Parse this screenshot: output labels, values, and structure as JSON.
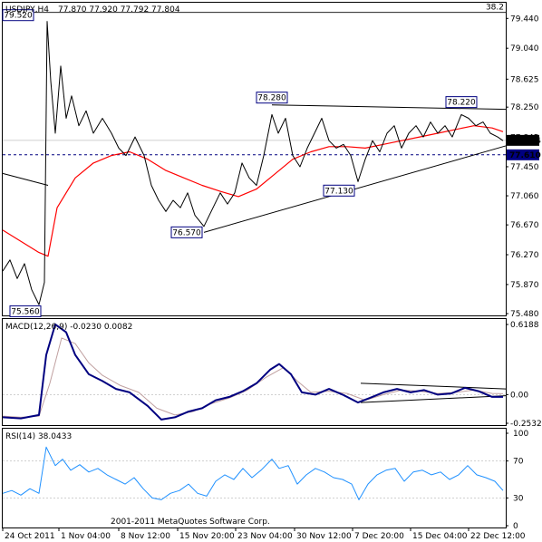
{
  "header": {
    "symbol_tf": "USDJPY,H4",
    "ohlc": "77.870 77.920 77.792 77.804"
  },
  "copyright": "2001-2011 MetaQuotes Software Corp.",
  "chart_data": [
    {
      "type": "line",
      "name": "price",
      "ylim": [
        75.48,
        79.48
      ],
      "yticks": [
        "79.440",
        "79.040",
        "78.625",
        "78.250",
        "77.845",
        "77.450",
        "77.060",
        "76.670",
        "76.270",
        "75.870",
        "75.480"
      ],
      "fib_label": "38.2",
      "fib_level": 79.52,
      "current_price_label": "77.804",
      "current_price": 77.804,
      "support_label": "77.610",
      "support_level": 77.61,
      "annotations": [
        {
          "text": "79.520",
          "i": 48,
          "value": 79.52
        },
        {
          "text": "75.560",
          "i": 40,
          "value": 75.56
        },
        {
          "text": "78.280",
          "i": 297,
          "value": 78.28
        },
        {
          "text": "76.570",
          "i": 222,
          "value": 76.57
        },
        {
          "text": "77.130",
          "i": 390,
          "value": 77.13
        },
        {
          "text": "78.220",
          "i": 506,
          "value": 78.22
        }
      ],
      "trendlines": [
        {
          "from": {
            "i": 222,
            "v": 76.57
          },
          "to": {
            "i": 555,
            "v": 77.73
          }
        },
        {
          "from": {
            "i": 297,
            "v": 78.28
          },
          "to": {
            "i": 555,
            "v": 78.22
          }
        },
        {
          "from": {
            "i": 0,
            "v": 77.36
          },
          "to": {
            "i": 50,
            "v": 77.2
          }
        }
      ],
      "close": [
        {
          "i": 0,
          "v": 76.05
        },
        {
          "i": 8,
          "v": 76.2
        },
        {
          "i": 16,
          "v": 75.95
        },
        {
          "i": 24,
          "v": 76.15
        },
        {
          "i": 32,
          "v": 75.8
        },
        {
          "i": 40,
          "v": 75.6
        },
        {
          "i": 46,
          "v": 75.9
        },
        {
          "i": 49,
          "v": 79.4
        },
        {
          "i": 53,
          "v": 78.6
        },
        {
          "i": 58,
          "v": 77.9
        },
        {
          "i": 64,
          "v": 78.8
        },
        {
          "i": 70,
          "v": 78.1
        },
        {
          "i": 76,
          "v": 78.4
        },
        {
          "i": 84,
          "v": 78.0
        },
        {
          "i": 92,
          "v": 78.2
        },
        {
          "i": 100,
          "v": 77.9
        },
        {
          "i": 110,
          "v": 78.1
        },
        {
          "i": 120,
          "v": 77.9
        },
        {
          "i": 128,
          "v": 77.7
        },
        {
          "i": 136,
          "v": 77.6
        },
        {
          "i": 146,
          "v": 77.85
        },
        {
          "i": 156,
          "v": 77.6
        },
        {
          "i": 164,
          "v": 77.2
        },
        {
          "i": 172,
          "v": 77.0
        },
        {
          "i": 180,
          "v": 76.85
        },
        {
          "i": 188,
          "v": 77.0
        },
        {
          "i": 196,
          "v": 76.9
        },
        {
          "i": 204,
          "v": 77.1
        },
        {
          "i": 212,
          "v": 76.8
        },
        {
          "i": 222,
          "v": 76.65
        },
        {
          "i": 232,
          "v": 76.9
        },
        {
          "i": 240,
          "v": 77.1
        },
        {
          "i": 248,
          "v": 76.95
        },
        {
          "i": 256,
          "v": 77.1
        },
        {
          "i": 264,
          "v": 77.5
        },
        {
          "i": 272,
          "v": 77.3
        },
        {
          "i": 280,
          "v": 77.2
        },
        {
          "i": 288,
          "v": 77.6
        },
        {
          "i": 297,
          "v": 78.15
        },
        {
          "i": 304,
          "v": 77.9
        },
        {
          "i": 312,
          "v": 78.1
        },
        {
          "i": 320,
          "v": 77.6
        },
        {
          "i": 328,
          "v": 77.45
        },
        {
          "i": 336,
          "v": 77.7
        },
        {
          "i": 344,
          "v": 77.9
        },
        {
          "i": 352,
          "v": 78.1
        },
        {
          "i": 360,
          "v": 77.8
        },
        {
          "i": 368,
          "v": 77.7
        },
        {
          "i": 376,
          "v": 77.75
        },
        {
          "i": 384,
          "v": 77.6
        },
        {
          "i": 392,
          "v": 77.25
        },
        {
          "i": 400,
          "v": 77.55
        },
        {
          "i": 408,
          "v": 77.8
        },
        {
          "i": 416,
          "v": 77.65
        },
        {
          "i": 424,
          "v": 77.9
        },
        {
          "i": 432,
          "v": 78.0
        },
        {
          "i": 440,
          "v": 77.7
        },
        {
          "i": 448,
          "v": 77.9
        },
        {
          "i": 456,
          "v": 78.0
        },
        {
          "i": 464,
          "v": 77.85
        },
        {
          "i": 472,
          "v": 78.05
        },
        {
          "i": 480,
          "v": 77.9
        },
        {
          "i": 488,
          "v": 78.0
        },
        {
          "i": 496,
          "v": 77.85
        },
        {
          "i": 506,
          "v": 78.15
        },
        {
          "i": 514,
          "v": 78.1
        },
        {
          "i": 522,
          "v": 78.0
        },
        {
          "i": 530,
          "v": 78.05
        },
        {
          "i": 538,
          "v": 77.9
        },
        {
          "i": 546,
          "v": 77.85
        },
        {
          "i": 552,
          "v": 77.8
        }
      ],
      "ma": [
        {
          "i": 0,
          "v": 76.6
        },
        {
          "i": 20,
          "v": 76.45
        },
        {
          "i": 40,
          "v": 76.3
        },
        {
          "i": 50,
          "v": 76.25
        },
        {
          "i": 60,
          "v": 76.9
        },
        {
          "i": 80,
          "v": 77.3
        },
        {
          "i": 100,
          "v": 77.5
        },
        {
          "i": 120,
          "v": 77.6
        },
        {
          "i": 140,
          "v": 77.65
        },
        {
          "i": 160,
          "v": 77.55
        },
        {
          "i": 180,
          "v": 77.4
        },
        {
          "i": 200,
          "v": 77.3
        },
        {
          "i": 220,
          "v": 77.2
        },
        {
          "i": 240,
          "v": 77.12
        },
        {
          "i": 260,
          "v": 77.05
        },
        {
          "i": 280,
          "v": 77.15
        },
        {
          "i": 300,
          "v": 77.35
        },
        {
          "i": 320,
          "v": 77.55
        },
        {
          "i": 340,
          "v": 77.65
        },
        {
          "i": 360,
          "v": 77.72
        },
        {
          "i": 380,
          "v": 77.72
        },
        {
          "i": 400,
          "v": 77.7
        },
        {
          "i": 420,
          "v": 77.75
        },
        {
          "i": 440,
          "v": 77.8
        },
        {
          "i": 460,
          "v": 77.85
        },
        {
          "i": 480,
          "v": 77.9
        },
        {
          "i": 500,
          "v": 77.95
        },
        {
          "i": 520,
          "v": 78.0
        },
        {
          "i": 540,
          "v": 77.97
        },
        {
          "i": 552,
          "v": 77.92
        }
      ]
    },
    {
      "type": "line",
      "name": "MACD",
      "label": "MACD(12,26,9) -0.0230 0.0082",
      "ylim": [
        -0.2532,
        0.6188
      ],
      "yticks": [
        "0.6188",
        "0.00",
        "-0.2532"
      ],
      "main": [
        {
          "i": 0,
          "v": -0.2
        },
        {
          "i": 20,
          "v": -0.21
        },
        {
          "i": 40,
          "v": -0.18
        },
        {
          "i": 48,
          "v": 0.35
        },
        {
          "i": 58,
          "v": 0.62
        },
        {
          "i": 70,
          "v": 0.55
        },
        {
          "i": 80,
          "v": 0.35
        },
        {
          "i": 95,
          "v": 0.18
        },
        {
          "i": 110,
          "v": 0.12
        },
        {
          "i": 125,
          "v": 0.05
        },
        {
          "i": 140,
          "v": 0.02
        },
        {
          "i": 160,
          "v": -0.1
        },
        {
          "i": 175,
          "v": -0.22
        },
        {
          "i": 190,
          "v": -0.2
        },
        {
          "i": 205,
          "v": -0.15
        },
        {
          "i": 220,
          "v": -0.12
        },
        {
          "i": 235,
          "v": -0.05
        },
        {
          "i": 250,
          "v": -0.02
        },
        {
          "i": 265,
          "v": 0.03
        },
        {
          "i": 280,
          "v": 0.1
        },
        {
          "i": 295,
          "v": 0.22
        },
        {
          "i": 305,
          "v": 0.27
        },
        {
          "i": 318,
          "v": 0.18
        },
        {
          "i": 330,
          "v": 0.02
        },
        {
          "i": 345,
          "v": 0.0
        },
        {
          "i": 360,
          "v": 0.05
        },
        {
          "i": 375,
          "v": 0.0
        },
        {
          "i": 392,
          "v": -0.07
        },
        {
          "i": 405,
          "v": -0.03
        },
        {
          "i": 420,
          "v": 0.02
        },
        {
          "i": 435,
          "v": 0.05
        },
        {
          "i": 450,
          "v": 0.02
        },
        {
          "i": 465,
          "v": 0.04
        },
        {
          "i": 480,
          "v": 0.0
        },
        {
          "i": 495,
          "v": 0.01
        },
        {
          "i": 510,
          "v": 0.06
        },
        {
          "i": 525,
          "v": 0.03
        },
        {
          "i": 540,
          "v": -0.02
        },
        {
          "i": 552,
          "v": -0.02
        }
      ],
      "signal": [
        {
          "i": 0,
          "v": -0.19
        },
        {
          "i": 20,
          "v": -0.2
        },
        {
          "i": 40,
          "v": -0.19
        },
        {
          "i": 52,
          "v": 0.1
        },
        {
          "i": 65,
          "v": 0.5
        },
        {
          "i": 80,
          "v": 0.45
        },
        {
          "i": 95,
          "v": 0.28
        },
        {
          "i": 110,
          "v": 0.17
        },
        {
          "i": 130,
          "v": 0.08
        },
        {
          "i": 150,
          "v": 0.02
        },
        {
          "i": 170,
          "v": -0.12
        },
        {
          "i": 190,
          "v": -0.18
        },
        {
          "i": 210,
          "v": -0.15
        },
        {
          "i": 230,
          "v": -0.08
        },
        {
          "i": 250,
          "v": -0.03
        },
        {
          "i": 270,
          "v": 0.04
        },
        {
          "i": 290,
          "v": 0.15
        },
        {
          "i": 310,
          "v": 0.24
        },
        {
          "i": 325,
          "v": 0.12
        },
        {
          "i": 340,
          "v": 0.02
        },
        {
          "i": 360,
          "v": 0.03
        },
        {
          "i": 380,
          "v": 0.01
        },
        {
          "i": 400,
          "v": -0.05
        },
        {
          "i": 420,
          "v": 0.0
        },
        {
          "i": 440,
          "v": 0.04
        },
        {
          "i": 460,
          "v": 0.03
        },
        {
          "i": 480,
          "v": 0.01
        },
        {
          "i": 500,
          "v": 0.02
        },
        {
          "i": 520,
          "v": 0.04
        },
        {
          "i": 540,
          "v": 0.01
        },
        {
          "i": 552,
          "v": 0.008
        }
      ],
      "trendlines": [
        {
          "from": {
            "i": 395,
            "v": 0.1
          },
          "to": {
            "i": 555,
            "v": 0.05
          }
        },
        {
          "from": {
            "i": 395,
            "v": -0.07
          },
          "to": {
            "i": 555,
            "v": -0.01
          }
        }
      ]
    },
    {
      "type": "line",
      "name": "RSI",
      "label": "RSI(14) 38.0433",
      "ylim": [
        0,
        100
      ],
      "yticks": [
        "100",
        "70",
        "30",
        "0"
      ],
      "levels": [
        70,
        30
      ],
      "values": [
        {
          "i": 0,
          "v": 35
        },
        {
          "i": 10,
          "v": 38
        },
        {
          "i": 20,
          "v": 33
        },
        {
          "i": 30,
          "v": 40
        },
        {
          "i": 40,
          "v": 35
        },
        {
          "i": 48,
          "v": 85
        },
        {
          "i": 58,
          "v": 65
        },
        {
          "i": 66,
          "v": 72
        },
        {
          "i": 75,
          "v": 60
        },
        {
          "i": 85,
          "v": 66
        },
        {
          "i": 95,
          "v": 58
        },
        {
          "i": 105,
          "v": 62
        },
        {
          "i": 115,
          "v": 55
        },
        {
          "i": 125,
          "v": 50
        },
        {
          "i": 135,
          "v": 45
        },
        {
          "i": 145,
          "v": 52
        },
        {
          "i": 155,
          "v": 40
        },
        {
          "i": 165,
          "v": 30
        },
        {
          "i": 175,
          "v": 28
        },
        {
          "i": 185,
          "v": 35
        },
        {
          "i": 195,
          "v": 38
        },
        {
          "i": 205,
          "v": 45
        },
        {
          "i": 215,
          "v": 35
        },
        {
          "i": 225,
          "v": 32
        },
        {
          "i": 235,
          "v": 48
        },
        {
          "i": 245,
          "v": 55
        },
        {
          "i": 255,
          "v": 50
        },
        {
          "i": 265,
          "v": 62
        },
        {
          "i": 275,
          "v": 52
        },
        {
          "i": 285,
          "v": 60
        },
        {
          "i": 297,
          "v": 72
        },
        {
          "i": 305,
          "v": 62
        },
        {
          "i": 315,
          "v": 65
        },
        {
          "i": 325,
          "v": 45
        },
        {
          "i": 335,
          "v": 55
        },
        {
          "i": 345,
          "v": 62
        },
        {
          "i": 355,
          "v": 58
        },
        {
          "i": 365,
          "v": 52
        },
        {
          "i": 375,
          "v": 50
        },
        {
          "i": 385,
          "v": 45
        },
        {
          "i": 393,
          "v": 28
        },
        {
          "i": 403,
          "v": 45
        },
        {
          "i": 413,
          "v": 55
        },
        {
          "i": 423,
          "v": 60
        },
        {
          "i": 433,
          "v": 62
        },
        {
          "i": 443,
          "v": 48
        },
        {
          "i": 453,
          "v": 58
        },
        {
          "i": 463,
          "v": 60
        },
        {
          "i": 473,
          "v": 55
        },
        {
          "i": 483,
          "v": 58
        },
        {
          "i": 493,
          "v": 50
        },
        {
          "i": 503,
          "v": 55
        },
        {
          "i": 513,
          "v": 65
        },
        {
          "i": 523,
          "v": 55
        },
        {
          "i": 533,
          "v": 52
        },
        {
          "i": 543,
          "v": 48
        },
        {
          "i": 552,
          "v": 38
        }
      ]
    }
  ],
  "xaxis": {
    "labels": [
      {
        "text": "24 Oct 2011",
        "i": 0
      },
      {
        "text": "1 Nov 04:00",
        "i": 62
      },
      {
        "text": "8 Nov 12:00",
        "i": 128
      },
      {
        "text": "15 Nov 20:00",
        "i": 193
      },
      {
        "text": "23 Nov 04:00",
        "i": 257
      },
      {
        "text": "30 Nov 12:00",
        "i": 322
      },
      {
        "text": "7 Dec 20:00",
        "i": 386
      },
      {
        "text": "15 Dec 04:00",
        "i": 450
      },
      {
        "text": "22 Dec 12:00",
        "i": 514
      }
    ]
  },
  "colors": {
    "price_line": "#000000",
    "ma_line": "#ff0000",
    "macd_main": "#000080",
    "macd_signal": "#c0a0a0",
    "rsi_line": "#1e90ff",
    "label_box_border": "#000080"
  }
}
